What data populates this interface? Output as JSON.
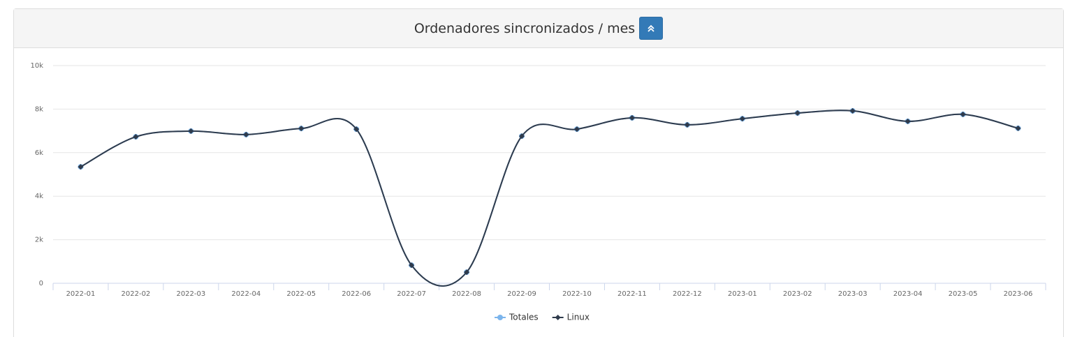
{
  "chart_data": {
    "type": "line",
    "title": "Ordenadores sincronizados / mes",
    "categories": [
      "2022-01",
      "2022-02",
      "2022-03",
      "2022-04",
      "2022-05",
      "2022-06",
      "2022-07",
      "2022-08",
      "2022-09",
      "2022-10",
      "2022-11",
      "2022-12",
      "2023-01",
      "2023-02",
      "2023-03",
      "2023-04",
      "2023-05",
      "2023-06"
    ],
    "series": [
      {
        "name": "Totales",
        "color": "#7cb5ec",
        "values": [
          5350,
          6730,
          6990,
          6830,
          7110,
          7080,
          830,
          510,
          6760,
          7080,
          7600,
          7280,
          7560,
          7820,
          7920,
          7440,
          7760,
          7120
        ]
      },
      {
        "name": "Linux",
        "color": "#2f3b4c",
        "values": [
          5350,
          6730,
          6990,
          6830,
          7110,
          7080,
          830,
          510,
          6760,
          7080,
          7600,
          7280,
          7560,
          7820,
          7920,
          7440,
          7760,
          7120
        ]
      }
    ],
    "ylim": [
      0,
      10000
    ],
    "yticks": [
      0,
      {
        "value": 2000,
        "label": "2k"
      },
      {
        "value": 4000,
        "label": "4k"
      },
      {
        "value": 6000,
        "label": "6k"
      },
      {
        "value": 8000,
        "label": "8k"
      },
      {
        "value": 10000,
        "label": "10k"
      }
    ],
    "grid": true,
    "legend": "bottom"
  }
}
